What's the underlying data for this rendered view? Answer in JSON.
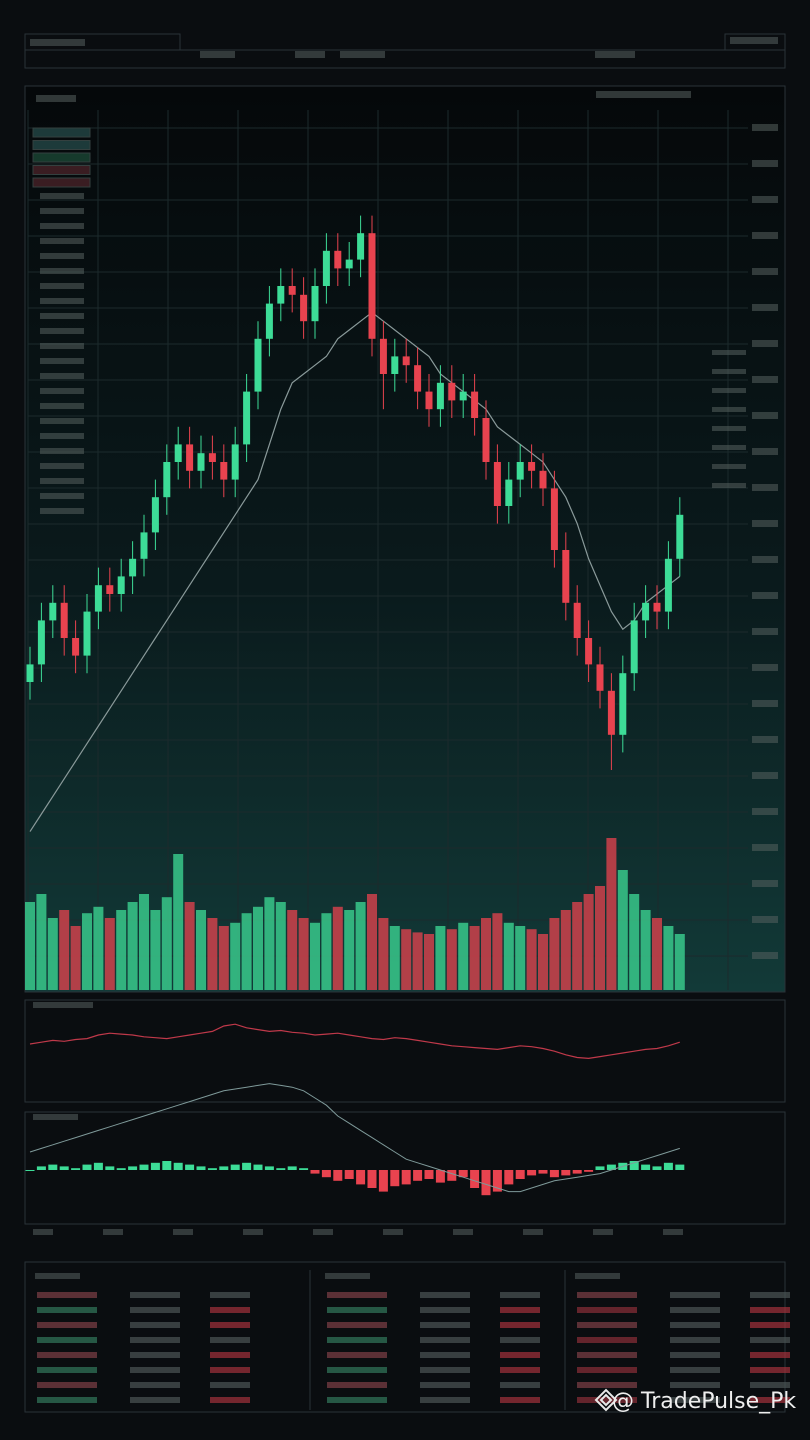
{
  "watermark": "@ TradePulse_Pk",
  "chart_data": {
    "type": "candlestick",
    "up_color": "#3ddc97",
    "down_color": "#e8434f",
    "ylim": [
      0,
      100
    ],
    "open": [
      35,
      37,
      42,
      44,
      40,
      38,
      43,
      46,
      45,
      47,
      49,
      52,
      56,
      60,
      62,
      59,
      61,
      60,
      58,
      62,
      68,
      74,
      78,
      80,
      79,
      76,
      80,
      84,
      82,
      83,
      86,
      74,
      70,
      72,
      71,
      68,
      66,
      69,
      67,
      68,
      65,
      60,
      55,
      58,
      60,
      59,
      57,
      50,
      44,
      40,
      37,
      34,
      29,
      36,
      42,
      44,
      43,
      49
    ],
    "high": [
      39,
      44,
      46,
      46,
      42,
      45,
      48,
      48,
      49,
      51,
      54,
      58,
      62,
      64,
      64,
      63,
      63,
      62,
      64,
      70,
      76,
      80,
      82,
      82,
      81,
      82,
      86,
      86,
      85,
      88,
      88,
      76,
      74,
      74,
      73,
      70,
      71,
      71,
      70,
      70,
      67,
      62,
      60,
      62,
      62,
      61,
      59,
      52,
      46,
      42,
      39,
      36,
      38,
      44,
      46,
      46,
      51,
      56
    ],
    "low": [
      33,
      35,
      40,
      38,
      36,
      36,
      41,
      43,
      43,
      45,
      47,
      50,
      54,
      58,
      57,
      57,
      58,
      56,
      56,
      60,
      66,
      72,
      76,
      77,
      74,
      74,
      78,
      80,
      80,
      81,
      72,
      66,
      68,
      69,
      66,
      64,
      64,
      65,
      65,
      63,
      58,
      53,
      53,
      56,
      57,
      55,
      48,
      42,
      38,
      35,
      32,
      25,
      27,
      34,
      40,
      41,
      41,
      47
    ],
    "close": [
      37,
      42,
      44,
      40,
      38,
      43,
      46,
      45,
      47,
      49,
      52,
      56,
      60,
      62,
      59,
      61,
      60,
      58,
      62,
      68,
      74,
      78,
      80,
      79,
      76,
      80,
      84,
      82,
      83,
      86,
      74,
      70,
      72,
      71,
      68,
      66,
      69,
      67,
      68,
      65,
      60,
      55,
      58,
      60,
      59,
      57,
      50,
      44,
      40,
      37,
      34,
      29,
      36,
      42,
      44,
      43,
      49,
      54
    ],
    "ma": {
      "color": "#8a9a9a",
      "values": [
        18,
        20,
        22,
        24,
        26,
        28,
        30,
        32,
        34,
        36,
        38,
        40,
        42,
        44,
        46,
        48,
        50,
        52,
        54,
        56,
        58,
        62,
        66,
        69,
        70,
        71,
        72,
        74,
        75,
        76,
        77,
        76,
        75,
        74,
        73,
        72,
        70,
        69,
        68,
        67,
        66,
        64,
        63,
        62,
        61,
        60,
        58,
        56,
        53,
        49,
        46,
        43,
        41,
        42,
        44,
        45,
        46,
        47
      ]
    },
    "volume": {
      "ylim": [
        0,
        100
      ],
      "values": [
        55,
        60,
        45,
        50,
        40,
        48,
        52,
        45,
        50,
        55,
        60,
        50,
        58,
        85,
        55,
        50,
        45,
        40,
        42,
        48,
        52,
        58,
        55,
        50,
        45,
        42,
        48,
        52,
        50,
        55,
        60,
        45,
        40,
        38,
        36,
        35,
        40,
        38,
        42,
        40,
        45,
        48,
        42,
        40,
        38,
        35,
        45,
        50,
        55,
        60,
        65,
        95,
        75,
        60,
        50,
        45,
        40,
        35
      ]
    },
    "oscillator": {
      "ylim": [
        0,
        100
      ],
      "color": "#c0394a",
      "values": [
        60,
        62,
        64,
        63,
        65,
        66,
        70,
        72,
        71,
        70,
        68,
        67,
        66,
        68,
        70,
        72,
        74,
        80,
        82,
        78,
        76,
        74,
        75,
        73,
        72,
        70,
        71,
        72,
        70,
        68,
        66,
        65,
        67,
        66,
        64,
        62,
        60,
        58,
        57,
        56,
        55,
        54,
        56,
        58,
        57,
        55,
        52,
        48,
        45,
        44,
        46,
        48,
        50,
        52,
        54,
        55,
        58,
        62
      ]
    },
    "macd": {
      "ylim": [
        -25,
        25
      ],
      "color": "#7f9a9a",
      "line": [
        10,
        12,
        14,
        16,
        18,
        20,
        22,
        24,
        26,
        28,
        30,
        32,
        34,
        36,
        38,
        40,
        42,
        44,
        45,
        46,
        47,
        48,
        47,
        46,
        44,
        40,
        36,
        30,
        26,
        22,
        18,
        14,
        10,
        6,
        4,
        2,
        0,
        -2,
        -4,
        -6,
        -8,
        -10,
        -12,
        -12,
        -10,
        -8,
        -6,
        -5,
        -4,
        -3,
        -2,
        0,
        2,
        4,
        6,
        8,
        10,
        12
      ],
      "histogram": [
        0,
        2,
        3,
        2,
        1,
        3,
        4,
        2,
        1,
        2,
        3,
        4,
        5,
        4,
        3,
        2,
        1,
        2,
        3,
        4,
        3,
        2,
        1,
        2,
        1,
        -2,
        -4,
        -6,
        -5,
        -8,
        -10,
        -12,
        -9,
        -8,
        -6,
        -5,
        -7,
        -6,
        -4,
        -10,
        -14,
        -12,
        -8,
        -5,
        -3,
        -2,
        -4,
        -3,
        -2,
        -1,
        2,
        3,
        4,
        5,
        3,
        2,
        4,
        3
      ]
    }
  }
}
